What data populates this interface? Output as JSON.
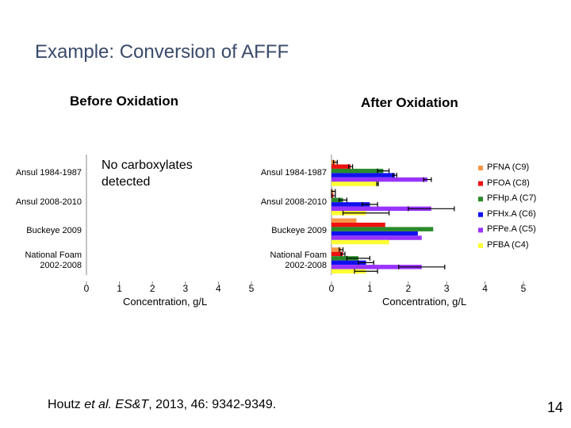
{
  "title": "Example: Conversion of AFFF",
  "charts": [
    {
      "type": "bar",
      "orientation": "horizontal",
      "title": "Before Oxidation",
      "annotation": "No carboxylates detected",
      "categories": [
        "Ansul 1984-1987",
        "Ansul 2008-2010",
        "Buckeye 2009",
        "National Foam 2002-2008"
      ],
      "series": [],
      "xlabel": "Concentration, g/L",
      "xlim": [
        0,
        5
      ],
      "xticks": [
        0,
        1,
        2,
        3,
        4,
        5
      ]
    },
    {
      "type": "bar",
      "orientation": "horizontal",
      "title": "After Oxidation",
      "categories": [
        "Ansul 1984-1987",
        "Ansul 2008-2010",
        "Buckeye 2009",
        "National Foam 2002-2008"
      ],
      "series": [
        {
          "name": "PFNA (C9)",
          "color": "#f79646",
          "values": [
            0.1,
            0.05,
            0.65,
            0.25
          ],
          "errors": [
            0.05,
            0.05,
            null,
            0.05
          ]
        },
        {
          "name": "PFOA (C8)",
          "color": "#ee1111",
          "values": [
            0.5,
            0.05,
            1.4,
            0.3
          ],
          "errors": [
            0.05,
            0.05,
            null,
            0.05
          ]
        },
        {
          "name": "PFHp.A (C7)",
          "color": "#2a8a2a",
          "values": [
            1.35,
            0.3,
            2.65,
            0.7
          ],
          "errors": [
            0.15,
            0.1,
            null,
            0.3
          ]
        },
        {
          "name": "PFHx.A (C6)",
          "color": "#1111ee",
          "values": [
            1.65,
            1.0,
            2.25,
            0.9
          ],
          "errors": [
            0.05,
            0.2,
            null,
            0.2
          ]
        },
        {
          "name": "PFPe.A (C5)",
          "color": "#9933ff",
          "values": [
            2.5,
            2.6,
            2.35,
            2.35
          ],
          "errors": [
            0.1,
            0.6,
            null,
            0.6
          ]
        },
        {
          "name": "PFBA (C4)",
          "color": "#ffff33",
          "values": [
            1.2,
            0.9,
            1.5,
            0.9
          ],
          "errors": [
            0.02,
            0.6,
            null,
            0.3
          ]
        }
      ],
      "xlabel": "Concentration, g/L",
      "xlim": [
        0,
        5
      ],
      "xticks": [
        0,
        1,
        2,
        3,
        4,
        5
      ],
      "legend": "right"
    }
  ],
  "citation": {
    "author": "Houtz",
    "etal": "et al.",
    "journal": "ES&T",
    "rest": ", 2013, 46: 9342-9349."
  },
  "page_number": "14"
}
